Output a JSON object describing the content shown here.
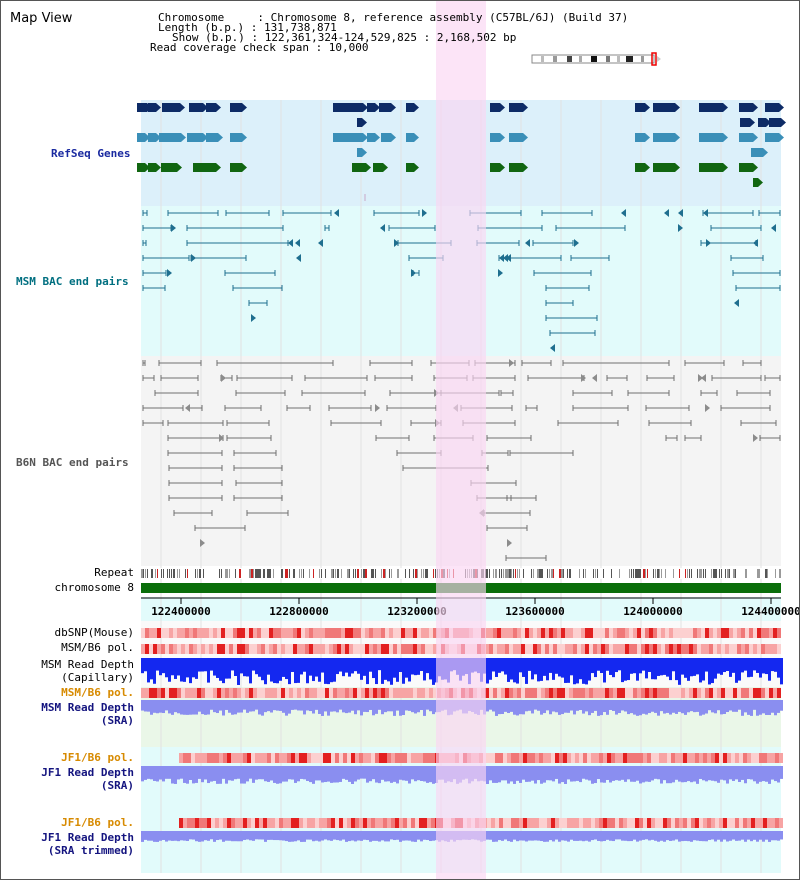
{
  "window": {
    "title": "Map View"
  },
  "info": {
    "chromosome": "Chromosome     : Chromosome 8, reference assembly (C57BL/6J) (Build 37)",
    "length": "Length (b.p.) : 131,738,871",
    "show": "Show (b.p.) : 122,361,324-124,529,825 : 2,168,502 bp",
    "coverage": "Read coverage check span : 10,000"
  },
  "tracks": {
    "refseq": "RefSeq Genes",
    "msm_bac": "MSM BAC end pairs",
    "b6n_bac": "B6N BAC end pairs",
    "repeat": "Repeat",
    "chromosome": "chromosome 8",
    "dbsnp": "dbSNP(Mouse)",
    "msm_pol_1": "MSM/B6 pol.",
    "msm_depth_cap_1": "MSM Read Depth",
    "msm_depth_cap_2": "(Capillary)",
    "msm_pol_2": "MSM/B6 pol.",
    "msm_depth_sra_1": "MSM Read Depth",
    "msm_depth_sra_2": "(SRA)",
    "jf1_pol_1": "JF1/B6 pol.",
    "jf1_depth_sra_1": "JF1 Read Depth",
    "jf1_depth_sra_2": "(SRA)",
    "jf1_pol_2": "JF1/B6 pol.",
    "jf1_depth_trim_1": "JF1 Read Depth",
    "jf1_depth_trim_2": "(SRA trimmed)"
  },
  "axis": {
    "ticks": [
      "122400000",
      "122800000",
      "123200000",
      "123600000",
      "124000000",
      "124400000"
    ]
  },
  "colors": {
    "refseq_bg": "#dcf0fa",
    "msm_bg": "#e2fbfb",
    "b6n_bg": "#f4f4f4",
    "highlight": "#fad6f2",
    "gene_dark": "#0d2b66",
    "gene_mid": "#3a8fb8",
    "gene_green": "#116611",
    "msm_pair": "#1f6f8f",
    "b6n_pair": "#707070",
    "chromosome_bar": "#0a6e0a",
    "label_refseq": "#1a2aa0",
    "label_msm": "#006f80",
    "label_b6n": "#555555",
    "label_orange": "#d78a00",
    "label_blue": "#14147f",
    "depth_capillary": "#1428f0",
    "depth_sra": "#8a8ef0"
  }
}
